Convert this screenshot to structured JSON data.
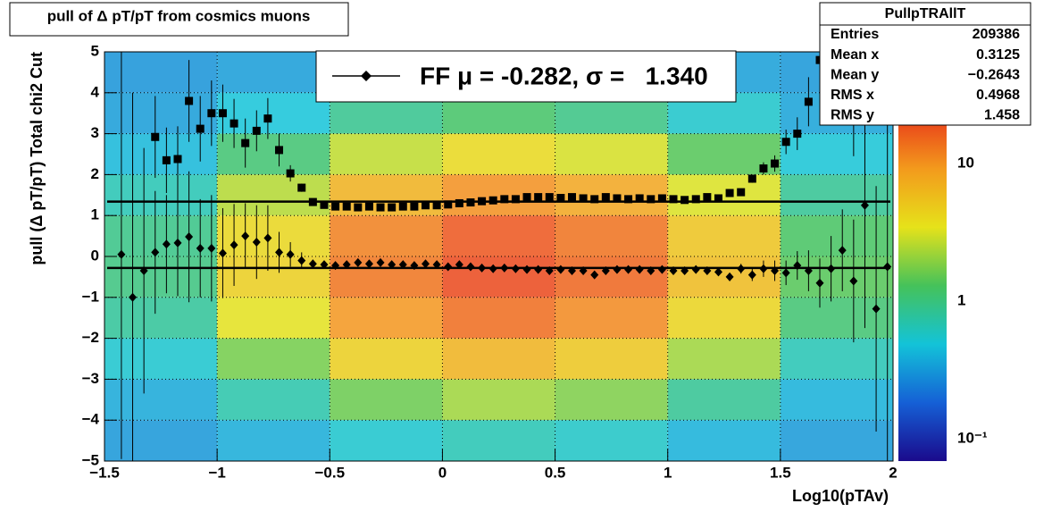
{
  "chart_data": {
    "type": "profile2d",
    "title": "pull of Δ pT/pT from cosmics muons",
    "x_label": "Log10(pTAv)",
    "y_label": "pull (Δ pT/pT)  Total chi2 Cut",
    "xlim": [
      -1.5,
      2
    ],
    "ylim": [
      -5,
      5
    ],
    "xticks": [
      {
        "value": -1.5,
        "label": "−1.5"
      },
      {
        "value": -1,
        "label": "−1"
      },
      {
        "value": -0.5,
        "label": "−0.5"
      },
      0,
      0.5,
      1,
      1.5,
      2
    ],
    "yticks": [
      {
        "value": -5,
        "label": "−5"
      },
      {
        "value": -4,
        "label": "−4"
      },
      {
        "value": -3,
        "label": "−3"
      },
      {
        "value": -2,
        "label": "−2"
      },
      {
        "value": -1,
        "label": "−1"
      },
      0,
      1,
      2,
      3,
      4,
      5
    ],
    "zlim": [
      0.069,
      65
    ],
    "zticks": [
      {
        "value": 0.1,
        "label": "10⁻¹"
      },
      1,
      10
    ],
    "zlog": true,
    "grid": true,
    "palette": [
      "#1a0a8c",
      "#1560d6",
      "#13c3d8",
      "#45c25a",
      "#e6e21a",
      "#f39a1c",
      "#e8321a",
      "#c01510"
    ],
    "heatmap": {
      "xbins": [
        -1.5,
        -1,
        -0.5,
        0,
        0.5,
        1,
        1.5,
        2
      ],
      "ybins": [
        5,
        4,
        3,
        2,
        1,
        0,
        -1,
        -2,
        -3,
        -4,
        -5
      ],
      "values": [
        [
          0.3,
          0.33,
          0.39,
          0.43,
          0.4,
          0.34,
          0.31
        ],
        [
          0.33,
          0.49,
          0.88,
          1.2,
          0.96,
          0.55,
          0.35
        ],
        [
          0.43,
          1.1,
          2.7,
          4,
          3.1,
          1.4,
          0.5
        ],
        [
          0.66,
          2.5,
          6.9,
          10.3,
          7.9,
          3.2,
          0.85
        ],
        [
          0.94,
          4.1,
          11.9,
          17.9,
          13.6,
          5.3,
          1.25
        ],
        [
          1.0,
          4.6,
          13.4,
          20.1,
          15.4,
          6.0,
          1.4
        ],
        [
          0.81,
          3.4,
          9.6,
          14.4,
          11,
          4.3,
          1.1
        ],
        [
          0.53,
          1.7,
          4.6,
          6.8,
          5.2,
          2.2,
          0.65
        ],
        [
          0.37,
          0.71,
          1.6,
          2.2,
          1.8,
          0.85,
          0.4
        ],
        [
          0.31,
          0.38,
          0.54,
          0.66,
          0.57,
          0.4,
          0.32
        ]
      ]
    },
    "x": [
      -1.425,
      -1.375,
      -1.325,
      -1.275,
      -1.225,
      -1.175,
      -1.125,
      -1.075,
      -1.025,
      -0.975,
      -0.925,
      -0.875,
      -0.825,
      -0.775,
      -0.725,
      -0.675,
      -0.625,
      -0.575,
      -0.525,
      -0.475,
      -0.425,
      -0.375,
      -0.325,
      -0.275,
      -0.225,
      -0.175,
      -0.125,
      -0.075,
      -0.025,
      0.025,
      0.075,
      0.125,
      0.175,
      0.225,
      0.275,
      0.325,
      0.375,
      0.425,
      0.475,
      0.525,
      0.575,
      0.625,
      0.675,
      0.725,
      0.775,
      0.825,
      0.875,
      0.925,
      0.975,
      1.025,
      1.075,
      1.125,
      1.175,
      1.225,
      1.275,
      1.325,
      1.375,
      1.425,
      1.475,
      1.525,
      1.575,
      1.625,
      1.675,
      1.725,
      1.775,
      1.825,
      1.875,
      1.925,
      1.975
    ],
    "series": [
      {
        "marker": "diamond",
        "color": "#000000",
        "values": [
          0.05,
          -1.0,
          -0.35,
          0.1,
          0.3,
          0.33,
          0.48,
          0.2,
          0.2,
          0.08,
          0.28,
          0.5,
          0.35,
          0.45,
          0.1,
          0.05,
          -0.1,
          -0.18,
          -0.2,
          -0.22,
          -0.2,
          -0.15,
          -0.18,
          -0.15,
          -0.2,
          -0.2,
          -0.22,
          -0.18,
          -0.2,
          -0.25,
          -0.2,
          -0.25,
          -0.28,
          -0.3,
          -0.28,
          -0.3,
          -0.32,
          -0.32,
          -0.35,
          -0.32,
          -0.35,
          -0.35,
          -0.45,
          -0.35,
          -0.32,
          -0.32,
          -0.32,
          -0.35,
          -0.32,
          -0.35,
          -0.35,
          -0.32,
          -0.35,
          -0.38,
          -0.5,
          -0.3,
          -0.45,
          -0.3,
          -0.35,
          -0.4,
          -0.22,
          -0.35,
          -0.65,
          -0.3,
          0.15,
          -0.6,
          1.25,
          -1.28,
          -0.25
        ],
        "errors": [
          5,
          5,
          3,
          1.5,
          1.2,
          1.3,
          1.6,
          1.2,
          1.3,
          1.1,
          1.0,
          0.8,
          0.9,
          0.8,
          0.5,
          0.3,
          0.2,
          0.1,
          0.03,
          0.03,
          0.03,
          0.03,
          0.03,
          0.03,
          0.03,
          0.03,
          0.03,
          0.03,
          0.03,
          0.03,
          0.03,
          0.03,
          0.03,
          0.03,
          0.03,
          0.03,
          0.03,
          0.03,
          0.03,
          0.03,
          0.03,
          0.03,
          0.03,
          0.03,
          0.03,
          0.03,
          0.03,
          0.03,
          0.03,
          0.03,
          0.03,
          0.03,
          0.03,
          0.03,
          0.1,
          0.12,
          0.15,
          0.2,
          0.25,
          0.3,
          0.35,
          0.5,
          0.6,
          0.8,
          1.0,
          1.5,
          3,
          3,
          5
        ]
      },
      {
        "marker": "square",
        "color": "#000000",
        "values": [
          null,
          null,
          null,
          2.92,
          2.35,
          2.38,
          3.8,
          3.12,
          3.5,
          3.5,
          3.25,
          2.77,
          3.07,
          3.37,
          2.6,
          2.03,
          1.68,
          1.33,
          1.26,
          1.22,
          1.22,
          1.2,
          1.22,
          1.2,
          1.2,
          1.22,
          1.22,
          1.25,
          1.25,
          1.27,
          1.3,
          1.32,
          1.35,
          1.37,
          1.4,
          1.4,
          1.45,
          1.45,
          1.45,
          1.43,
          1.45,
          1.42,
          1.4,
          1.45,
          1.42,
          1.4,
          1.42,
          1.4,
          1.42,
          1.4,
          1.38,
          1.4,
          1.45,
          1.42,
          1.55,
          1.57,
          1.9,
          2.15,
          2.27,
          2.8,
          3.0,
          3.78,
          4.8,
          null,
          null,
          3.95,
          null,
          null,
          null
        ],
        "errors": [
          null,
          null,
          null,
          1.0,
          0.8,
          0.8,
          1.0,
          0.8,
          0.8,
          0.7,
          0.6,
          0.6,
          0.5,
          0.5,
          0.4,
          0.2,
          0.1,
          0.03,
          0.03,
          0.03,
          0.03,
          0.03,
          0.03,
          0.03,
          0.03,
          0.03,
          0.03,
          0.03,
          0.03,
          0.03,
          0.03,
          0.03,
          0.03,
          0.03,
          0.03,
          0.03,
          0.03,
          0.03,
          0.03,
          0.03,
          0.03,
          0.03,
          0.03,
          0.03,
          0.03,
          0.03,
          0.03,
          0.03,
          0.03,
          0.03,
          0.03,
          0.03,
          0.03,
          0.03,
          0.05,
          0.07,
          0.1,
          0.15,
          0.2,
          0.3,
          0.4,
          0.6,
          0.8,
          null,
          null,
          1.5,
          null,
          null,
          null
        ]
      }
    ],
    "fits": [
      -0.282,
      1.34
    ],
    "legend": "FF μ = -0.282, σ =   1.340",
    "stats": {
      "title": "PullpTRAllT",
      "labels": [
        "Entries",
        "Mean x",
        "Mean y",
        "RMS x",
        "RMS y"
      ],
      "values": [
        "209386",
        "0.3125",
        "−0.2643",
        "0.4968",
        "1.458"
      ]
    }
  }
}
